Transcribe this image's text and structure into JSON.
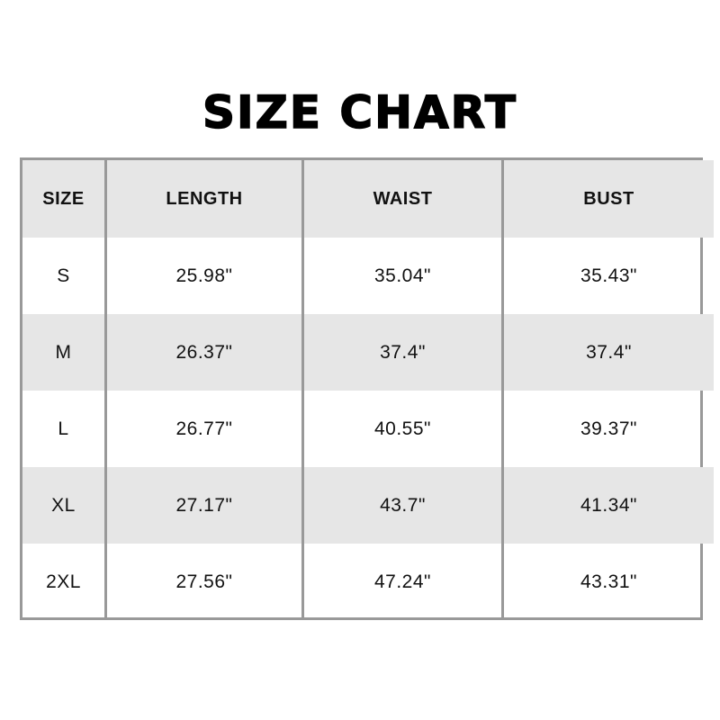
{
  "title": "SIZE CHART",
  "chart_data": {
    "type": "table",
    "title": "SIZE CHART",
    "columns": [
      "SIZE",
      "LENGTH",
      "WAIST",
      "BUST"
    ],
    "rows": [
      [
        "S",
        "25.98\"",
        "35.04\"",
        "35.43\""
      ],
      [
        "M",
        "26.37\"",
        "37.4\"",
        "37.4\""
      ],
      [
        "L",
        "26.77\"",
        "40.55\"",
        "39.37\""
      ],
      [
        "XL",
        "27.17\"",
        "43.7\"",
        "41.34\""
      ],
      [
        "2XL",
        "27.56\"",
        "47.24\"",
        "43.31\""
      ]
    ],
    "colors": {
      "border": "#999999",
      "stripe": "#e6e6e6"
    }
  }
}
